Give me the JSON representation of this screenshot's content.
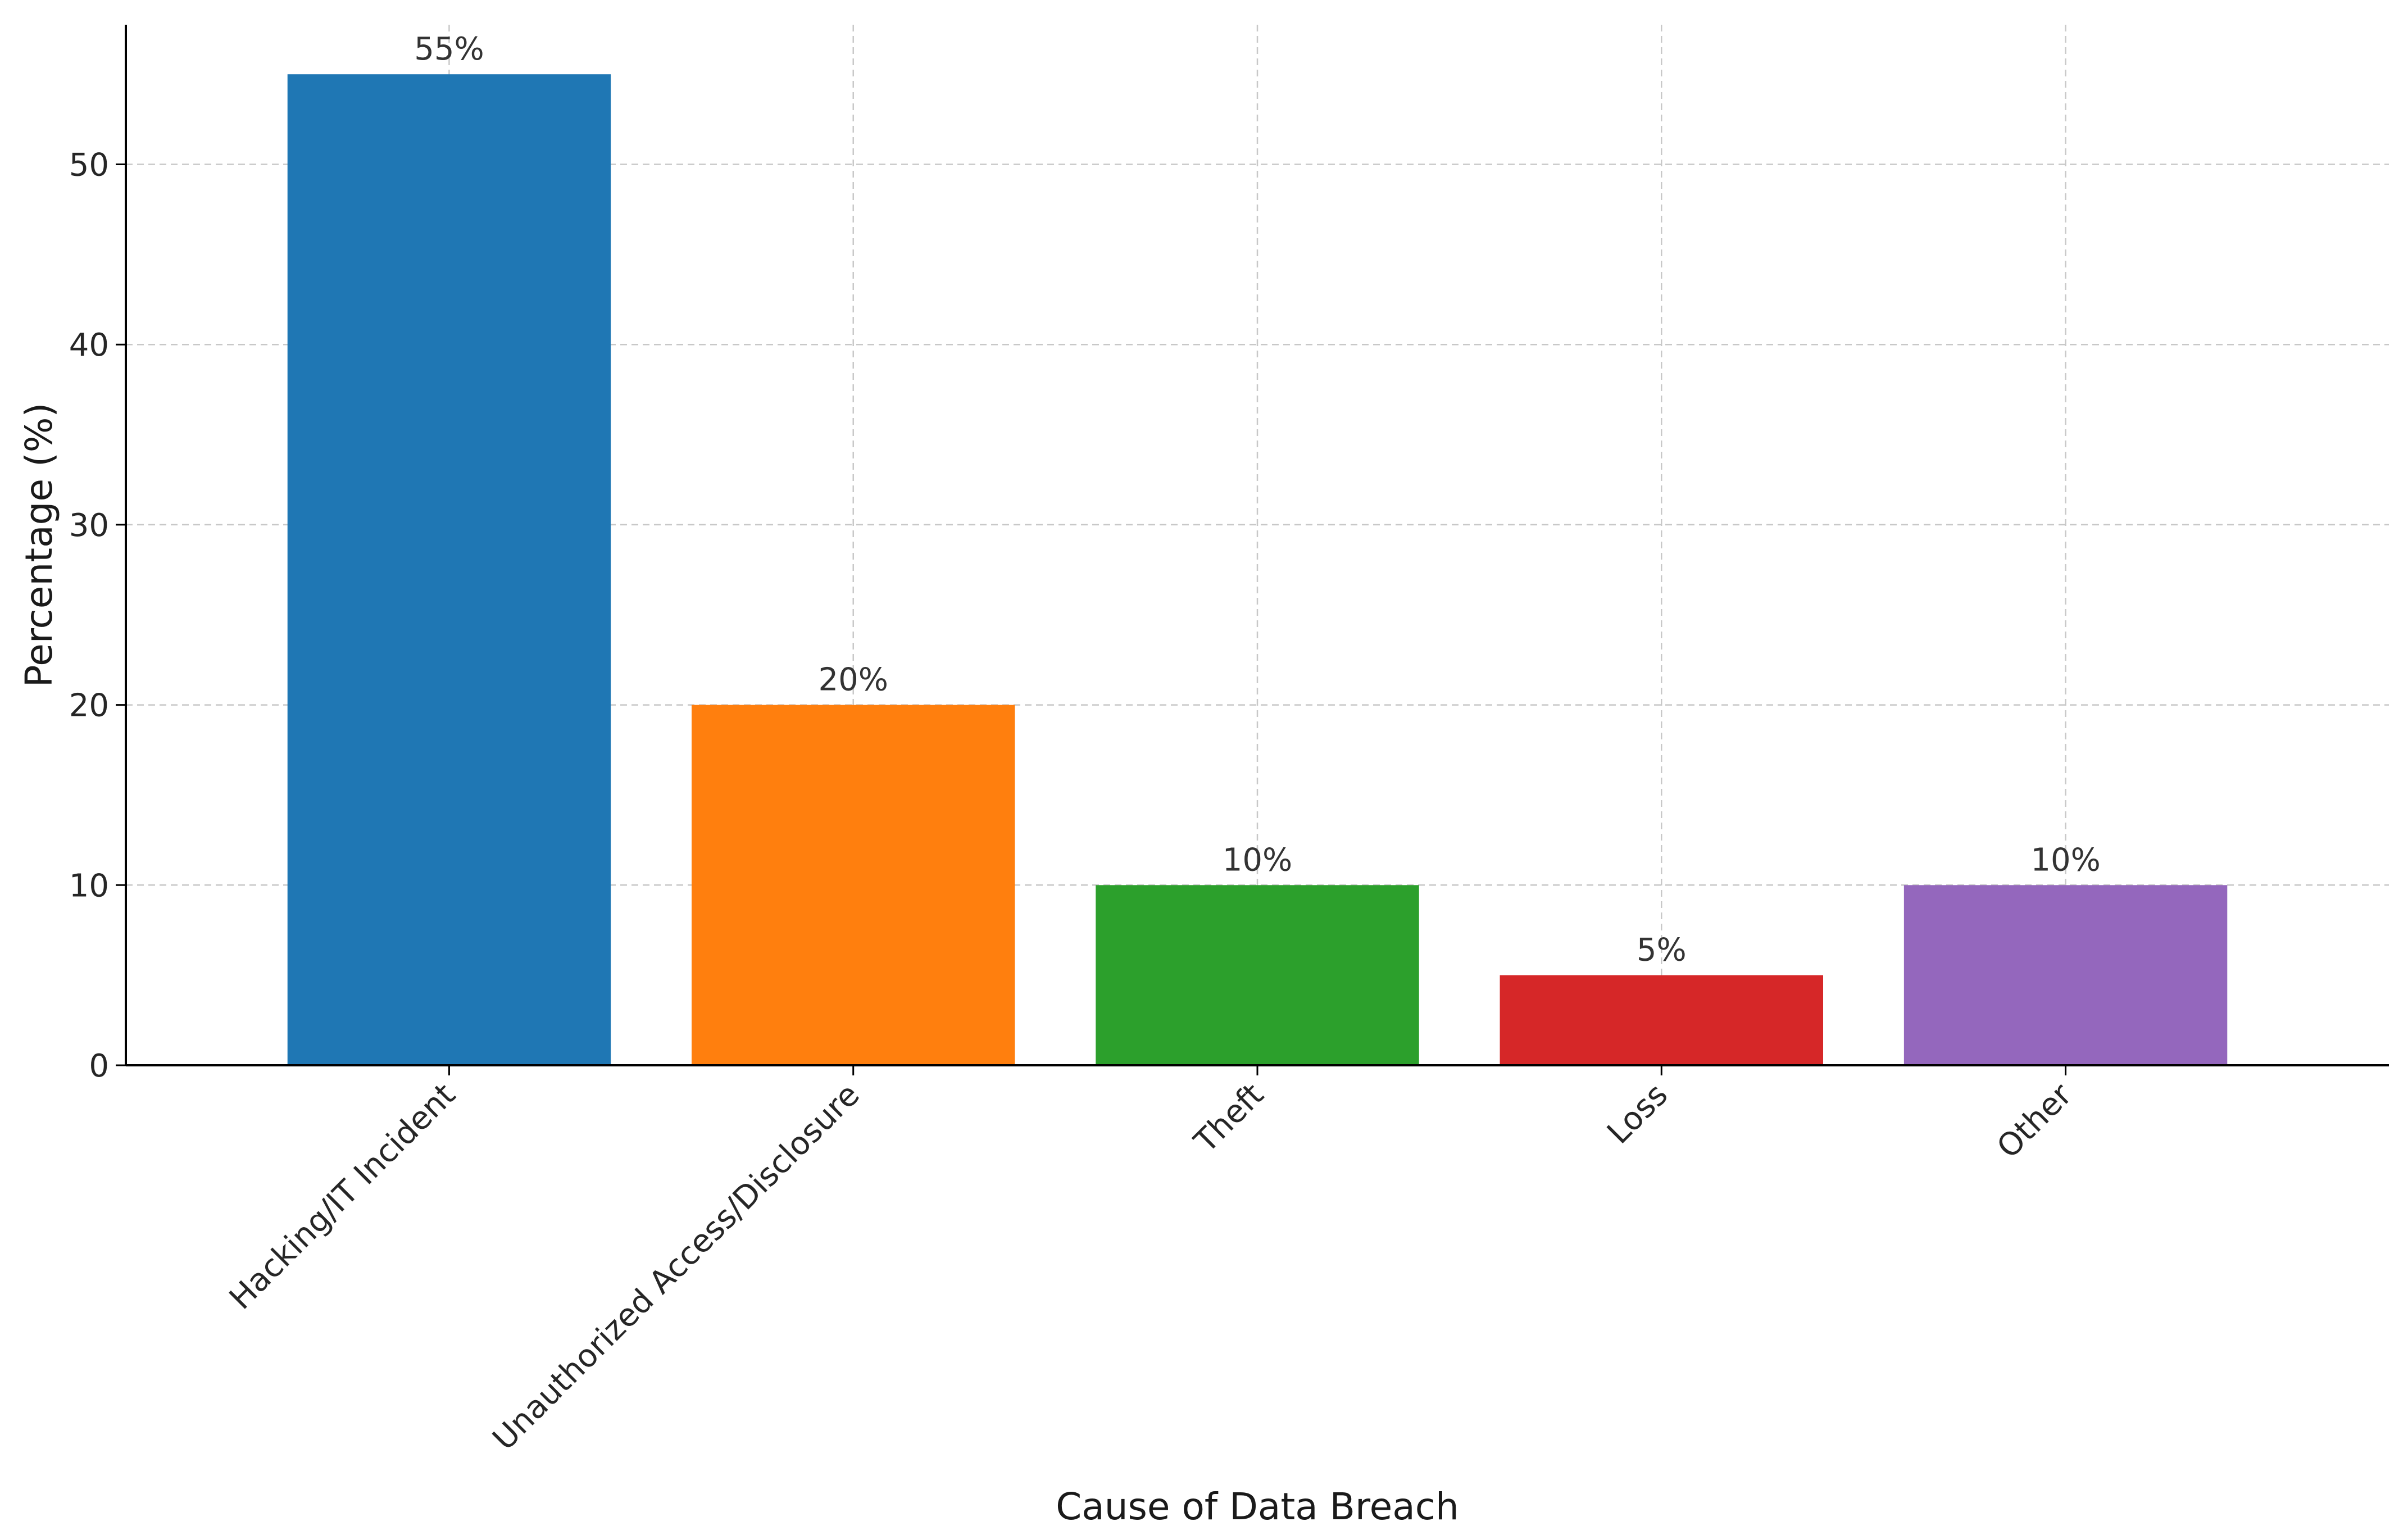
{
  "chart_data": {
    "type": "bar",
    "title": "",
    "xlabel": "Cause of Data Breach",
    "ylabel": "Percentage (%)",
    "categories": [
      "Hacking/IT Incident",
      "Unauthorized Access/Disclosure",
      "Theft",
      "Loss",
      "Other"
    ],
    "values": [
      55,
      20,
      10,
      5,
      10
    ],
    "data_labels": [
      "55%",
      "20%",
      "10%",
      "5%",
      "10%"
    ],
    "colors": [
      "#1f77b4",
      "#ff7f0e",
      "#2ca02c",
      "#d62728",
      "#9467bd"
    ],
    "ylim": [
      0,
      57.75
    ],
    "yticks": [
      0,
      10,
      20,
      30,
      40,
      50
    ],
    "ytick_labels": [
      "0",
      "10",
      "20",
      "30",
      "40",
      "50"
    ],
    "grid": true,
    "legend": "none"
  }
}
